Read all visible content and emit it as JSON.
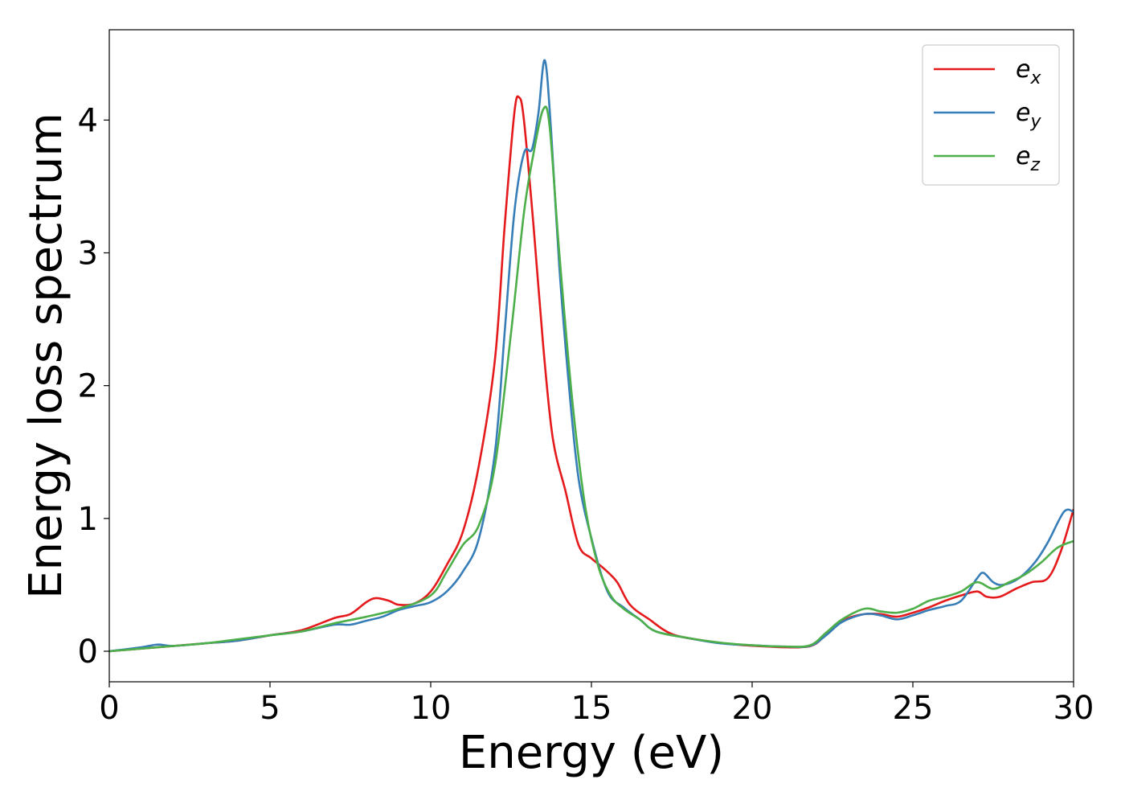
{
  "chart_data": {
    "type": "line",
    "xlabel": "Energy (eV)",
    "ylabel": "Energy loss spectrum",
    "xlim": [
      0,
      30
    ],
    "ylim": [
      -0.23,
      4.68
    ],
    "x_ticks": [
      "0",
      "5",
      "10",
      "15",
      "20",
      "25",
      "30"
    ],
    "y_ticks": [
      "0",
      "1",
      "2",
      "3",
      "4"
    ],
    "grid": false,
    "legend_position": "top-right",
    "series": [
      {
        "name_base": "e",
        "name_sub": "x",
        "color": "#e41a1c",
        "points": [
          [
            0,
            0
          ],
          [
            1,
            0.02
          ],
          [
            2,
            0.04
          ],
          [
            3,
            0.06
          ],
          [
            4,
            0.08
          ],
          [
            5,
            0.12
          ],
          [
            6,
            0.16
          ],
          [
            7,
            0.25
          ],
          [
            7.5,
            0.28
          ],
          [
            8,
            0.37
          ],
          [
            8.3,
            0.4
          ],
          [
            8.7,
            0.38
          ],
          [
            9,
            0.35
          ],
          [
            9.5,
            0.36
          ],
          [
            10,
            0.45
          ],
          [
            10.5,
            0.65
          ],
          [
            11,
            0.9
          ],
          [
            11.5,
            1.4
          ],
          [
            12,
            2.2
          ],
          [
            12.3,
            3.2
          ],
          [
            12.6,
            4.05
          ],
          [
            12.75,
            4.17
          ],
          [
            12.9,
            4.0
          ],
          [
            13.2,
            3.2
          ],
          [
            13.5,
            2.3
          ],
          [
            13.8,
            1.6
          ],
          [
            14.2,
            1.2
          ],
          [
            14.6,
            0.8
          ],
          [
            15,
            0.7
          ],
          [
            15.4,
            0.62
          ],
          [
            15.8,
            0.52
          ],
          [
            16.2,
            0.35
          ],
          [
            16.8,
            0.24
          ],
          [
            17.5,
            0.13
          ],
          [
            18.5,
            0.08
          ],
          [
            19.5,
            0.05
          ],
          [
            20.5,
            0.035
          ],
          [
            21.5,
            0.03
          ],
          [
            22,
            0.06
          ],
          [
            22.5,
            0.18
          ],
          [
            23,
            0.25
          ],
          [
            23.5,
            0.28
          ],
          [
            24,
            0.28
          ],
          [
            24.5,
            0.26
          ],
          [
            25,
            0.29
          ],
          [
            25.5,
            0.33
          ],
          [
            26,
            0.38
          ],
          [
            26.5,
            0.42
          ],
          [
            27,
            0.45
          ],
          [
            27.3,
            0.41
          ],
          [
            27.7,
            0.41
          ],
          [
            28.2,
            0.47
          ],
          [
            28.7,
            0.52
          ],
          [
            29.2,
            0.55
          ],
          [
            29.6,
            0.75
          ],
          [
            30,
            1.07
          ]
        ]
      },
      {
        "name_base": "e",
        "name_sub": "y",
        "color": "#377eb8",
        "points": [
          [
            0,
            0
          ],
          [
            1,
            0.03
          ],
          [
            1.5,
            0.05
          ],
          [
            2,
            0.04
          ],
          [
            3,
            0.06
          ],
          [
            4,
            0.08
          ],
          [
            5,
            0.12
          ],
          [
            6,
            0.15
          ],
          [
            7,
            0.2
          ],
          [
            7.5,
            0.2
          ],
          [
            8,
            0.23
          ],
          [
            8.5,
            0.26
          ],
          [
            9,
            0.31
          ],
          [
            9.5,
            0.34
          ],
          [
            10,
            0.37
          ],
          [
            10.5,
            0.45
          ],
          [
            11,
            0.6
          ],
          [
            11.5,
            0.85
          ],
          [
            12,
            1.5
          ],
          [
            12.3,
            2.4
          ],
          [
            12.6,
            3.3
          ],
          [
            12.9,
            3.75
          ],
          [
            13.15,
            3.78
          ],
          [
            13.35,
            4.05
          ],
          [
            13.55,
            4.45
          ],
          [
            13.75,
            3.9
          ],
          [
            14,
            2.9
          ],
          [
            14.3,
            2.0
          ],
          [
            14.6,
            1.3
          ],
          [
            15,
            0.85
          ],
          [
            15.5,
            0.45
          ],
          [
            16,
            0.33
          ],
          [
            16.5,
            0.24
          ],
          [
            17,
            0.15
          ],
          [
            18,
            0.1
          ],
          [
            19,
            0.06
          ],
          [
            20,
            0.045
          ],
          [
            21,
            0.035
          ],
          [
            21.8,
            0.04
          ],
          [
            22.3,
            0.12
          ],
          [
            22.8,
            0.22
          ],
          [
            23.5,
            0.28
          ],
          [
            24,
            0.27
          ],
          [
            24.5,
            0.24
          ],
          [
            25,
            0.27
          ],
          [
            25.5,
            0.31
          ],
          [
            26,
            0.34
          ],
          [
            26.5,
            0.38
          ],
          [
            27,
            0.55
          ],
          [
            27.2,
            0.59
          ],
          [
            27.5,
            0.52
          ],
          [
            27.8,
            0.5
          ],
          [
            28.3,
            0.55
          ],
          [
            28.8,
            0.67
          ],
          [
            29.2,
            0.82
          ],
          [
            29.7,
            1.05
          ],
          [
            30,
            1.05
          ]
        ]
      },
      {
        "name_base": "e",
        "name_sub": "z",
        "color": "#4daf4a",
        "points": [
          [
            0,
            0
          ],
          [
            1,
            0.02
          ],
          [
            2,
            0.04
          ],
          [
            3,
            0.06
          ],
          [
            4,
            0.09
          ],
          [
            5,
            0.12
          ],
          [
            6,
            0.15
          ],
          [
            7,
            0.21
          ],
          [
            8,
            0.26
          ],
          [
            9,
            0.32
          ],
          [
            10,
            0.42
          ],
          [
            10.5,
            0.6
          ],
          [
            11,
            0.8
          ],
          [
            11.5,
            0.95
          ],
          [
            12,
            1.4
          ],
          [
            12.5,
            2.4
          ],
          [
            12.9,
            3.3
          ],
          [
            13.2,
            3.75
          ],
          [
            13.5,
            4.08
          ],
          [
            13.7,
            3.95
          ],
          [
            14,
            3.0
          ],
          [
            14.4,
            1.9
          ],
          [
            14.8,
            1.1
          ],
          [
            15.2,
            0.65
          ],
          [
            15.6,
            0.42
          ],
          [
            16,
            0.32
          ],
          [
            16.5,
            0.24
          ],
          [
            17,
            0.15
          ],
          [
            18,
            0.1
          ],
          [
            19,
            0.065
          ],
          [
            20,
            0.045
          ],
          [
            21,
            0.035
          ],
          [
            21.8,
            0.045
          ],
          [
            22.3,
            0.14
          ],
          [
            22.8,
            0.24
          ],
          [
            23.5,
            0.32
          ],
          [
            24,
            0.3
          ],
          [
            24.5,
            0.29
          ],
          [
            25,
            0.32
          ],
          [
            25.5,
            0.38
          ],
          [
            26,
            0.41
          ],
          [
            26.5,
            0.45
          ],
          [
            27,
            0.52
          ],
          [
            27.5,
            0.47
          ],
          [
            28,
            0.52
          ],
          [
            28.5,
            0.58
          ],
          [
            29,
            0.67
          ],
          [
            29.5,
            0.78
          ],
          [
            30,
            0.83
          ]
        ]
      }
    ]
  }
}
